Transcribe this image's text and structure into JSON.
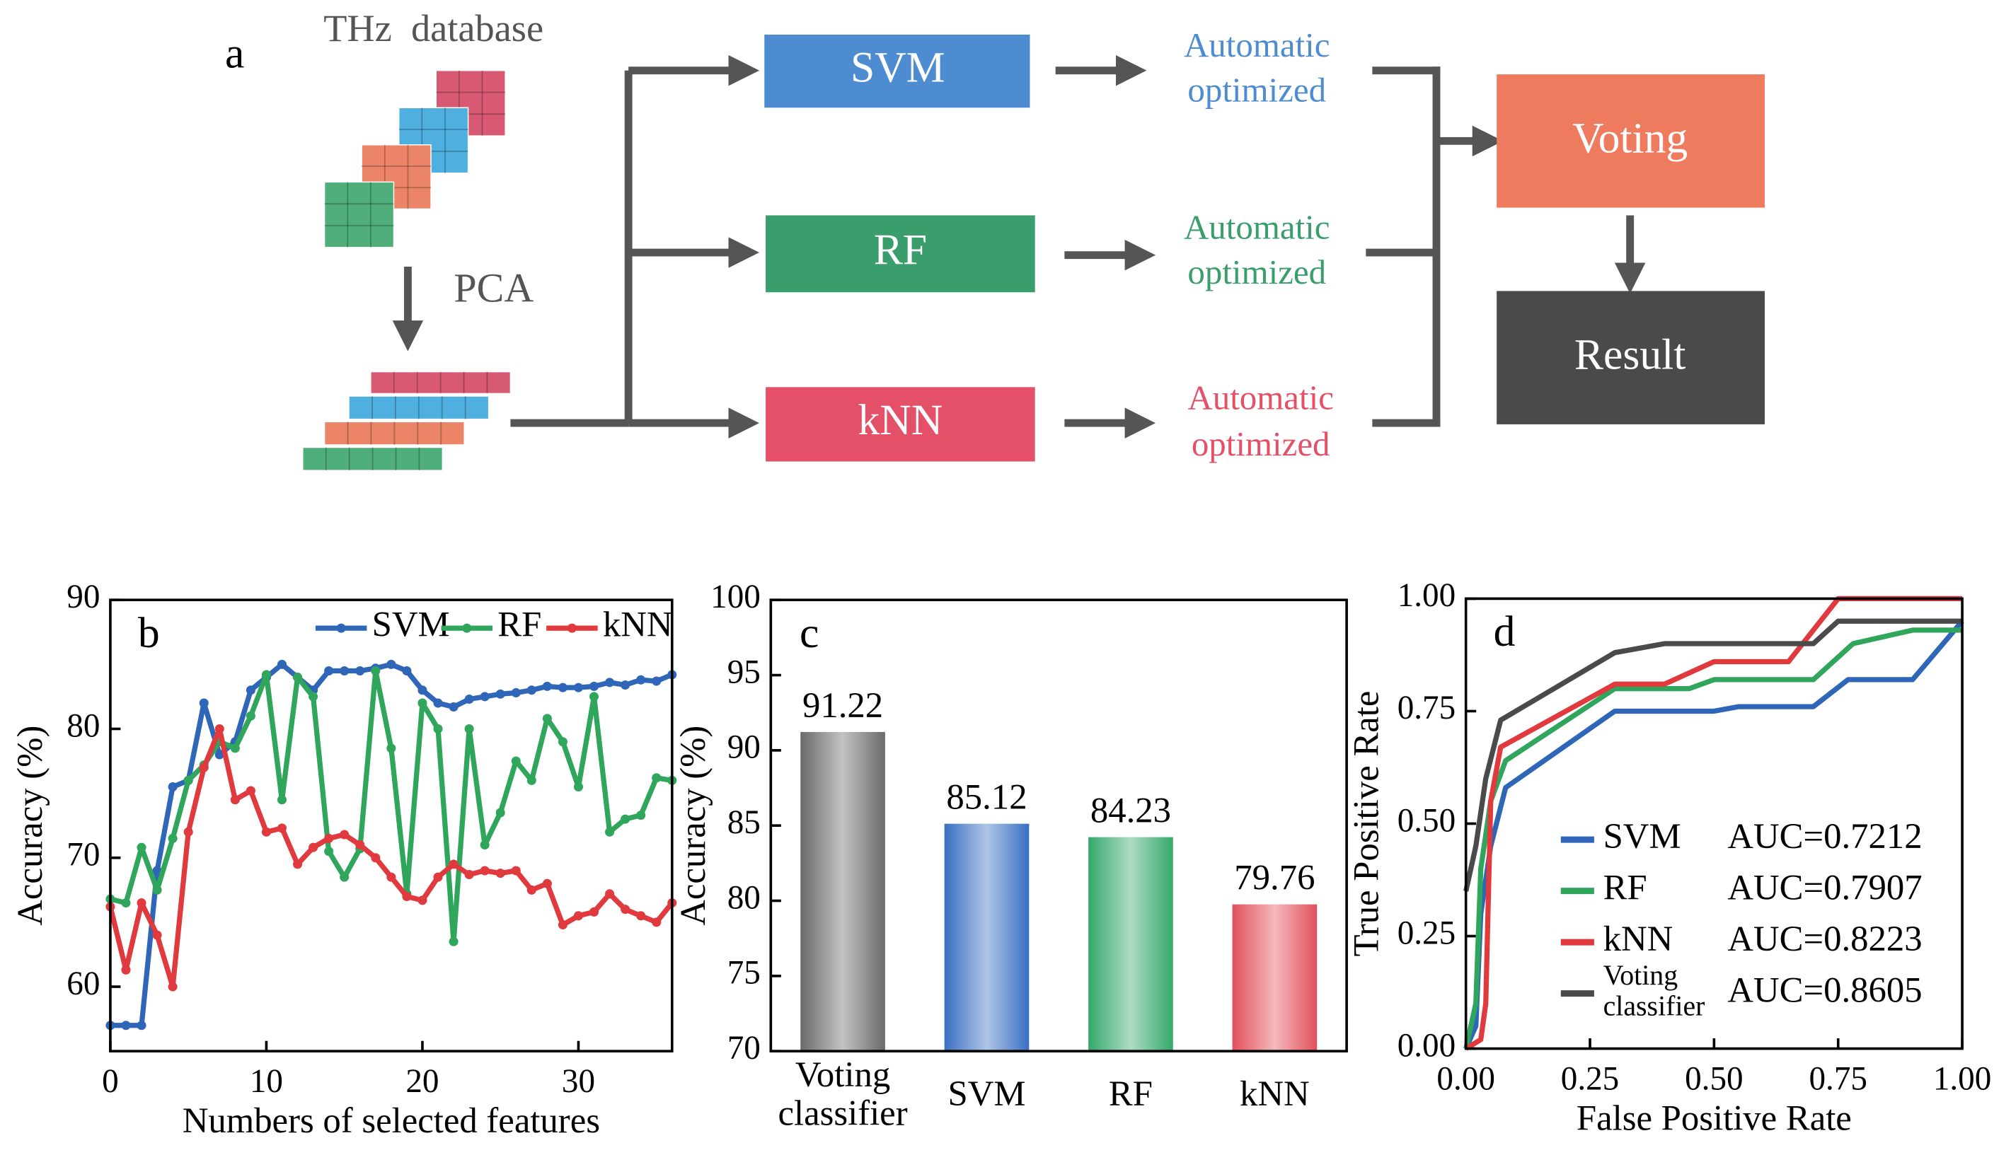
{
  "diagram": {
    "panel_label": "a",
    "database": "THz  database",
    "reduction": "PCA",
    "models": [
      {
        "name": "SVM",
        "note": [
          "Automatic",
          "optimized"
        ]
      },
      {
        "name": "RF",
        "note": [
          "Automatic",
          "optimized"
        ]
      },
      {
        "name": "kNN",
        "note": [
          "Automatic",
          "optimized"
        ]
      }
    ],
    "vote": "Voting",
    "result": "Result"
  },
  "chart_data": [
    {
      "type": "line",
      "panel_label": "b",
      "x_label": "Numbers of selected features",
      "y_label": "Accuracy (%)",
      "x": [
        0,
        1,
        2,
        3,
        4,
        5,
        6,
        7,
        8,
        9,
        10,
        11,
        12,
        13,
        14,
        15,
        16,
        17,
        18,
        19,
        20,
        21,
        22,
        23,
        24,
        25,
        26,
        27,
        28,
        29,
        30,
        31,
        32,
        33,
        34,
        35,
        36
      ],
      "xlim": [
        0,
        36
      ],
      "xticks": [
        0,
        10,
        20,
        30
      ],
      "ylim": [
        55,
        90
      ],
      "yticks": [
        60,
        70,
        80,
        90
      ],
      "markers": true,
      "legend": "top-right",
      "series": [
        {
          "name": "SVM",
          "color": "#2f66b8",
          "values": [
            57,
            57,
            57,
            69,
            75.5,
            76,
            82,
            78,
            79,
            83,
            84,
            85,
            84,
            83,
            84.5,
            84.5,
            84.5,
            84.7,
            85,
            84.5,
            83,
            82,
            81.7,
            82.3,
            82.5,
            82.7,
            82.8,
            83,
            83.3,
            83.2,
            83.2,
            83.3,
            83.6,
            83.4,
            83.8,
            83.7,
            84.2
          ]
        },
        {
          "name": "RF",
          "color": "#30a55c",
          "values": [
            66.8,
            66.5,
            70.8,
            67.5,
            71.5,
            76,
            77.2,
            79,
            78.5,
            81,
            84.2,
            74.5,
            84,
            82.5,
            70.5,
            68.5,
            70.7,
            84.5,
            78.5,
            67.2,
            82,
            80,
            63.5,
            80,
            71,
            73.5,
            77.5,
            76,
            80.8,
            79,
            75.5,
            82.5,
            72,
            73,
            73.3,
            76.2,
            76
          ]
        },
        {
          "name": "kNN",
          "color": "#e0393e",
          "values": [
            66.2,
            61.3,
            66.5,
            64,
            60,
            72,
            77,
            80,
            74.5,
            75.2,
            72,
            72.3,
            69.5,
            70.8,
            71.5,
            71.8,
            71,
            70,
            68.5,
            67,
            66.7,
            68.5,
            69.5,
            68.7,
            69,
            68.8,
            69,
            67.5,
            68,
            64.8,
            65.5,
            65.8,
            67.2,
            66,
            65.5,
            65,
            66.5
          ]
        }
      ]
    },
    {
      "type": "bar",
      "panel_label": "c",
      "y_label": "Accuracy (%)",
      "categories": [
        "Voting classifier",
        "SVM",
        "RF",
        "kNN"
      ],
      "values": [
        91.22,
        85.12,
        84.23,
        79.76
      ],
      "colors": [
        "#6a6a6a",
        "#3a6fc2",
        "#34a86b",
        "#e2505a"
      ],
      "ylim": [
        70,
        100
      ],
      "yticks": [
        70,
        75,
        80,
        85,
        90,
        95,
        100
      ]
    },
    {
      "type": "line",
      "panel_label": "d",
      "x_label": "False Positive Rate",
      "y_label": "True Positive Rate",
      "xlim": [
        0,
        1
      ],
      "ylim": [
        0,
        1
      ],
      "legend": "bottom-right",
      "xticks": [
        {
          "value": 0,
          "label": "0.00"
        },
        {
          "value": 0.25,
          "label": "0.25"
        },
        {
          "value": 0.5,
          "label": "0.50"
        },
        {
          "value": 0.75,
          "label": "0.75"
        },
        {
          "value": 1,
          "label": "1.00"
        }
      ],
      "yticks": [
        {
          "value": 0,
          "label": "0.00"
        },
        {
          "value": 0.25,
          "label": "0.25"
        },
        {
          "value": 0.5,
          "label": "0.50"
        },
        {
          "value": 0.75,
          "label": "0.75"
        },
        {
          "value": 1,
          "label": "1.00"
        }
      ],
      "series": [
        {
          "name": "SVM",
          "auc_label": "AUC=0.7212",
          "color": "#2f66b8",
          "x": [
            0,
            0.02,
            0.03,
            0.05,
            0.08,
            0.3,
            0.5,
            0.55,
            0.7,
            0.77,
            0.9,
            1
          ],
          "values": [
            0,
            0.05,
            0.3,
            0.45,
            0.58,
            0.75,
            0.75,
            0.76,
            0.76,
            0.82,
            0.82,
            0.95
          ]
        },
        {
          "name": "RF",
          "auc_label": "AUC=0.7907",
          "color": "#30a55c",
          "x": [
            0,
            0.02,
            0.03,
            0.05,
            0.08,
            0.3,
            0.45,
            0.5,
            0.7,
            0.78,
            0.9,
            1
          ],
          "values": [
            0,
            0.1,
            0.4,
            0.55,
            0.64,
            0.8,
            0.8,
            0.82,
            0.82,
            0.9,
            0.93,
            0.93
          ]
        },
        {
          "name": "kNN",
          "auc_label": "AUC=0.8223",
          "color": "#e0393e",
          "x": [
            0,
            0.03,
            0.04,
            0.05,
            0.07,
            0.3,
            0.4,
            0.5,
            0.65,
            0.75,
            1
          ],
          "values": [
            0,
            0.02,
            0.1,
            0.55,
            0.67,
            0.81,
            0.81,
            0.86,
            0.86,
            1,
            1
          ]
        },
        {
          "name": "Voting classifier",
          "auc_label": "AUC=0.8605",
          "color": "#4a4a4a",
          "x": [
            0,
            0.02,
            0.04,
            0.07,
            0.3,
            0.4,
            0.7,
            0.75,
            1
          ],
          "values": [
            0.35,
            0.45,
            0.6,
            0.73,
            0.88,
            0.9,
            0.9,
            0.95,
            0.95
          ]
        }
      ]
    }
  ]
}
